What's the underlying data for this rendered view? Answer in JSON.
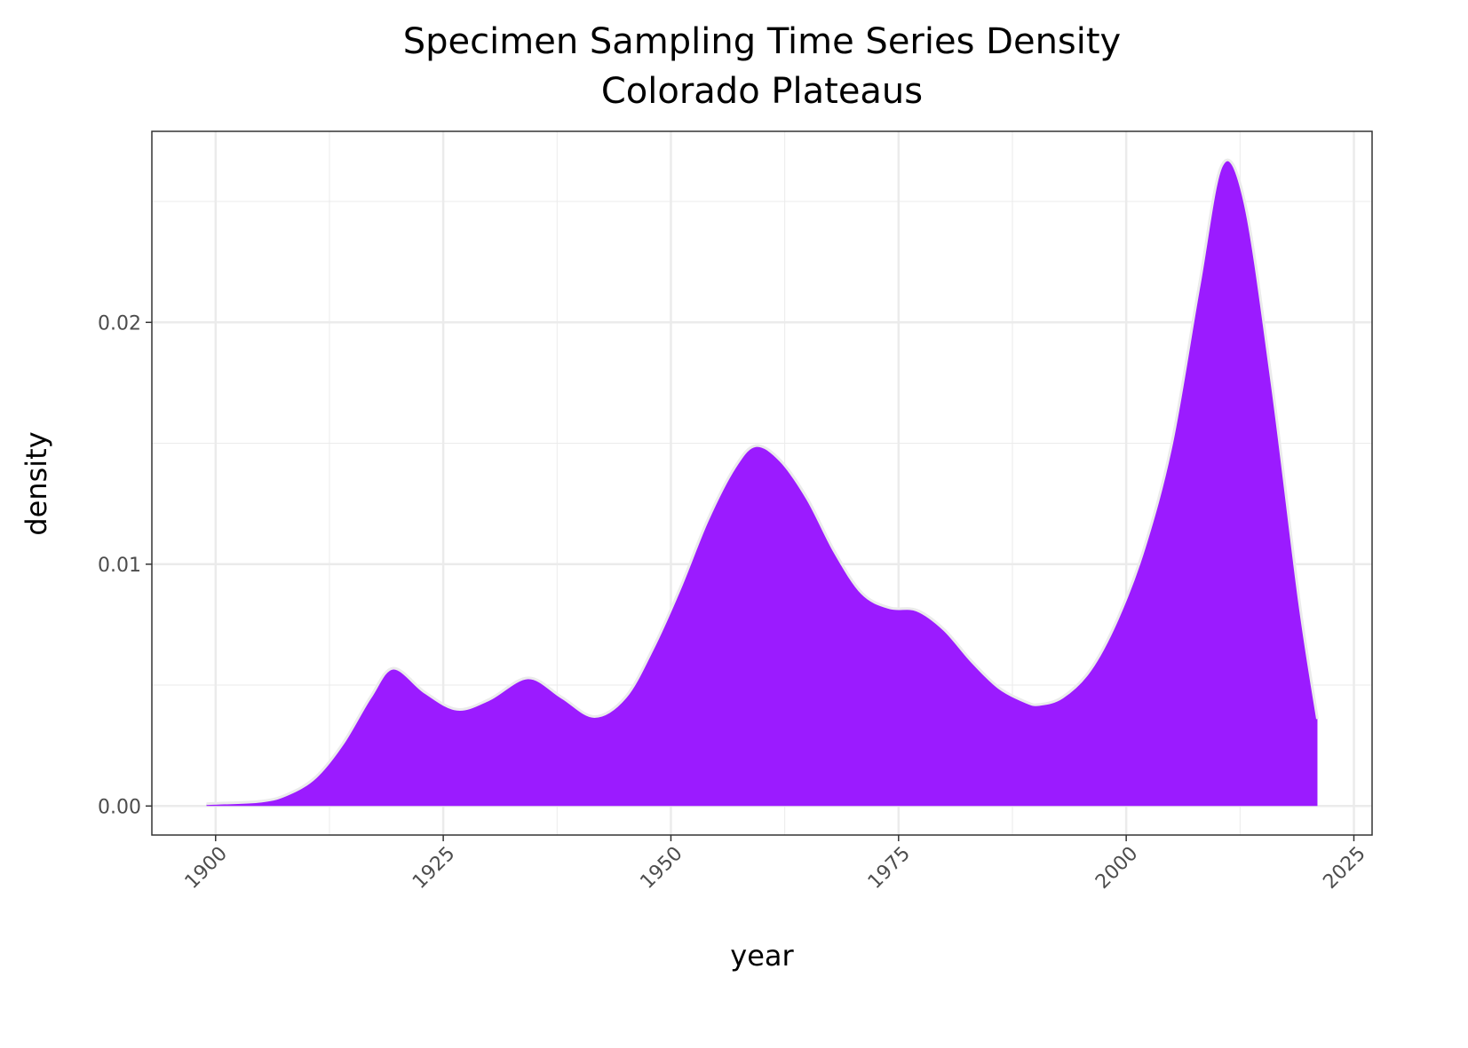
{
  "chart_data": {
    "type": "area",
    "title": "Specimen Sampling Time Series Density",
    "subtitle": "Colorado Plateaus",
    "xlabel": "year",
    "ylabel": "density",
    "xlim": [
      1893,
      2027
    ],
    "ylim": [
      -0.0012,
      0.0279
    ],
    "xticks": [
      1900,
      1925,
      1950,
      1975,
      2000,
      2025
    ],
    "xtick_labels": [
      "1900",
      "1925",
      "1950",
      "1975",
      "2000",
      "2025"
    ],
    "yticks": [
      0,
      0.01,
      0.02
    ],
    "ytick_labels": [
      "0.00",
      "0.01",
      "0.02"
    ],
    "grid": true,
    "fill_color": "#9b1bff",
    "outline_color": "#ebebeb",
    "x": [
      1899,
      1905,
      1908,
      1911,
      1914,
      1917,
      1919.5,
      1923,
      1926.5,
      1930,
      1934.3,
      1938,
      1941.6,
      1945,
      1948,
      1951,
      1954,
      1957,
      1959.3,
      1962,
      1965,
      1968,
      1971,
      1974,
      1977,
      1980,
      1983,
      1986,
      1989,
      1990.5,
      1993,
      1996,
      1999,
      2002,
      2005,
      2008,
      2010.5,
      2013,
      2016,
      2019,
      2021
    ],
    "y": [
      0.0001,
      0.0002,
      0.0005,
      0.0012,
      0.0026,
      0.0045,
      0.0057,
      0.0047,
      0.004,
      0.0044,
      0.0053,
      0.0045,
      0.0037,
      0.0045,
      0.0065,
      0.009,
      0.0118,
      0.014,
      0.0149,
      0.0143,
      0.0127,
      0.0105,
      0.0088,
      0.0082,
      0.0081,
      0.0073,
      0.006,
      0.0049,
      0.0043,
      0.0042,
      0.0045,
      0.0056,
      0.0077,
      0.0107,
      0.015,
      0.0215,
      0.0265,
      0.025,
      0.0175,
      0.0085,
      0.0036
    ]
  }
}
